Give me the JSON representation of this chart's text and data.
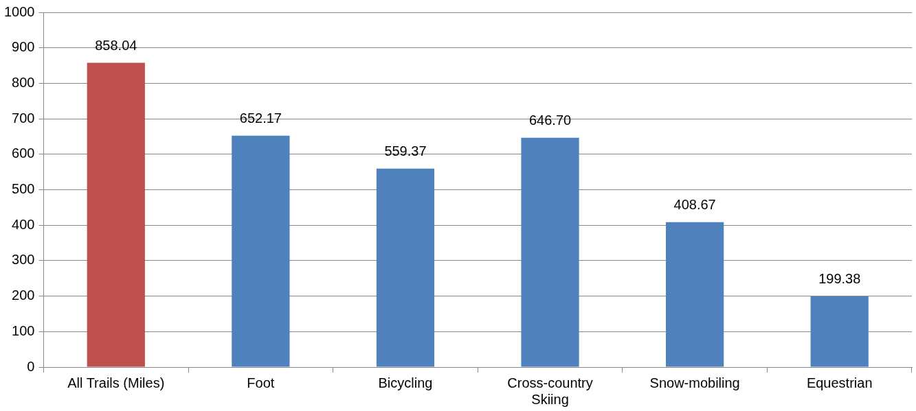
{
  "chart_data": {
    "type": "bar",
    "categories": [
      "All Trails (Miles)",
      "Foot",
      "Bicycling",
      "Cross-country Skiing",
      "Snow-mobiling",
      "Equestrian"
    ],
    "values": [
      858.04,
      652.17,
      559.37,
      646.7,
      408.67,
      199.38
    ],
    "value_labels": [
      "858.04",
      "652.17",
      "559.37",
      "646.70",
      "408.67",
      "199.38"
    ],
    "colors": [
      "#c0504d",
      "#4f81bd",
      "#4f81bd",
      "#4f81bd",
      "#4f81bd",
      "#4f81bd"
    ],
    "ylim": [
      0,
      1000
    ],
    "yticks": [
      0,
      100,
      200,
      300,
      400,
      500,
      600,
      700,
      800,
      900,
      1000
    ],
    "grid": "y",
    "legend": false
  }
}
